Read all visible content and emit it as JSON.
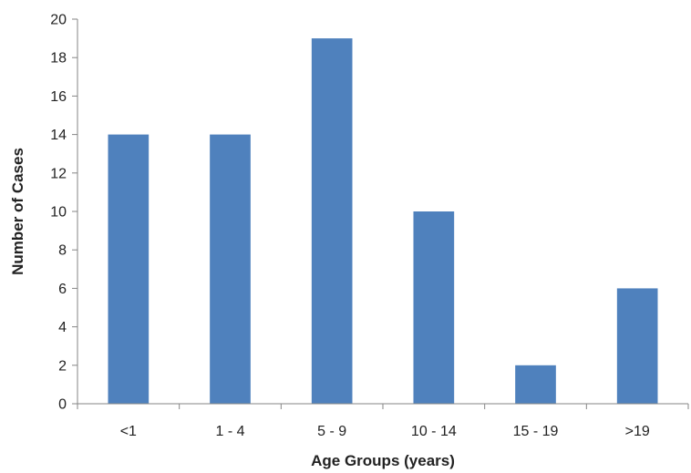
{
  "chart_data": {
    "type": "bar",
    "title": "",
    "xlabel": "Age Groups (years)",
    "ylabel": "Number of Cases",
    "categories": [
      "<1",
      "1 - 4",
      "5 - 9",
      "10 - 14",
      "15 - 19",
      ">19"
    ],
    "values": [
      14,
      14,
      19,
      10,
      2,
      6
    ],
    "ylim": [
      0,
      20
    ],
    "yticks": [
      0,
      2,
      4,
      6,
      8,
      10,
      12,
      14,
      16,
      18,
      20
    ],
    "grid": false,
    "legend": "none",
    "bar_color": "#4f81bd",
    "axis_color": "#868686"
  }
}
